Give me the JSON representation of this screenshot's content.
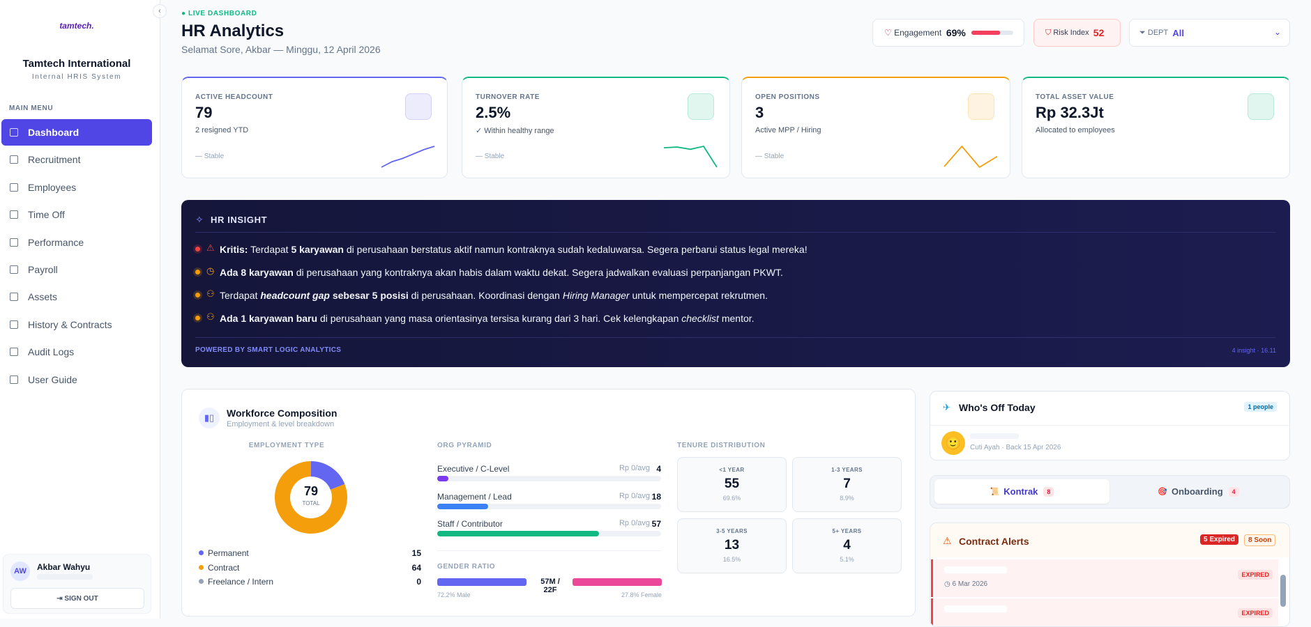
{
  "sidebar": {
    "logo": "tamtech.",
    "company": "Tamtech International",
    "system": "Internal HRIS System",
    "menu_label": "MAIN MENU",
    "active": 0,
    "menu": [
      "Dashboard",
      "Recruitment",
      "Employees",
      "Time Off",
      "Performance",
      "Payroll",
      "Assets",
      "History & Contracts",
      "Audit Logs",
      "User Guide"
    ],
    "user": {
      "initials": "AW",
      "name": "Akbar Wahyu",
      "signout": "SIGN OUT"
    }
  },
  "header": {
    "live": "LIVE DASHBOARD",
    "title": "HR Analytics",
    "greeting": "Selamat Sore, Akbar — Minggu, 12 April 2026",
    "engagement": {
      "label": "Engagement",
      "value": 69,
      "value_label": "69%"
    },
    "risk": {
      "label": "Risk Index",
      "value": "52"
    },
    "dept": {
      "label": "DEPT",
      "value": "All"
    }
  },
  "kpis": [
    {
      "label": "ACTIVE HEADCOUNT",
      "value": "79",
      "sub": "2 resigned YTD",
      "trend": "— Stable",
      "color": "#6366f1",
      "sparkline": [
        1,
        2,
        2.6,
        3.4,
        4.2,
        4.8
      ]
    },
    {
      "label": "TURNOVER RATE",
      "value": "2.5%",
      "sub": "✓ Within healthy range",
      "trend": "— Stable",
      "color": "#10b981",
      "sparkline": [
        4.6,
        4.7,
        4.4,
        4.8,
        2.0
      ]
    },
    {
      "label": "OPEN POSITIONS",
      "value": "3",
      "sub": "Active MPP / Hiring",
      "trend": "— Stable",
      "color": "#f59e0b",
      "sparkline": [
        1,
        4,
        0.9,
        2.5
      ]
    },
    {
      "label": "TOTAL ASSET VALUE",
      "value": "Rp 32.3Jt",
      "sub": "Allocated to employees",
      "color": "#10b981"
    }
  ],
  "insight": {
    "title": "HR INSIGHT",
    "items": [
      {
        "level": "critical",
        "icon": "alert",
        "parts": [
          {
            "t": "Kritis:",
            "s": "b"
          },
          {
            "t": " Terdapat "
          },
          {
            "t": "5 karyawan",
            "s": "b"
          },
          {
            "t": " di perusahaan berstatus aktif namun kontraknya sudah kedaluwarsa. Segera perbarui status legal mereka!"
          }
        ]
      },
      {
        "level": "warning",
        "icon": "clock",
        "parts": [
          {
            "t": "Ada 8 karyawan",
            "s": "b"
          },
          {
            "t": " di perusahaan yang kontraknya akan habis dalam waktu dekat. Segera jadwalkan evaluasi perpanjangan PKWT."
          }
        ]
      },
      {
        "level": "warning",
        "icon": "people",
        "parts": [
          {
            "t": "Terdapat "
          },
          {
            "t": "headcount gap",
            "s": "bi"
          },
          {
            "t": " sebesar 5 posisi",
            "s": "b"
          },
          {
            "t": " di perusahaan. Koordinasi dengan "
          },
          {
            "t": "Hiring Manager",
            "s": "i"
          },
          {
            "t": " untuk mempercepat rekrutmen."
          }
        ]
      },
      {
        "level": "warning",
        "icon": "people",
        "parts": [
          {
            "t": "Ada 1 karyawan baru",
            "s": "b"
          },
          {
            "t": " di perusahaan yang masa orientasinya tersisa kurang dari 3 hari. Cek kelengkapan "
          },
          {
            "t": "checklist",
            "s": "i"
          },
          {
            "t": " mentor."
          }
        ]
      }
    ],
    "footer": "POWERED BY SMART LOGIC ANALYTICS",
    "meta": "4 insight · 16.11"
  },
  "workforce": {
    "title": "Workforce Composition",
    "subtitle": "Employment & level breakdown",
    "employment": {
      "title": "EMPLOYMENT TYPE",
      "total": "79",
      "total_label": "TOTAL",
      "types": [
        {
          "name": "Permanent",
          "value": 15,
          "color": "#6366f1"
        },
        {
          "name": "Contract",
          "value": 64,
          "color": "#f59e0b"
        },
        {
          "name": "Freelance / Intern",
          "value": 0,
          "color": "#94a3b8"
        }
      ]
    },
    "pyramid": {
      "title": "ORG PYRAMID",
      "levels": [
        {
          "name": "Executive / C-Level",
          "avg": "Rp 0/avg",
          "value": 4,
          "color": "#7c3aed"
        },
        {
          "name": "Management / Lead",
          "avg": "Rp 0/avg",
          "value": 18,
          "color": "#3b82f6"
        },
        {
          "name": "Staff / Contributor",
          "avg": "Rp 0/avg",
          "value": 57,
          "color": "#10b981"
        }
      ]
    },
    "gender": {
      "title": "GENDER RATIO",
      "ratio": "57M / 22F",
      "male": "72.2% Male",
      "female": "27.8% Female"
    },
    "tenure": {
      "title": "TENURE DISTRIBUTION",
      "groups": [
        {
          "label": "<1 YEAR",
          "value": "55",
          "pct": "69.6%"
        },
        {
          "label": "1-3 YEARS",
          "value": "7",
          "pct": "8.9%"
        },
        {
          "label": "3-5 YEARS",
          "value": "13",
          "pct": "16.5%"
        },
        {
          "label": "5+ YEARS",
          "value": "4",
          "pct": "5.1%"
        }
      ]
    }
  },
  "off_today": {
    "title": "Who's Off Today",
    "badge": "1 people",
    "entries": [
      "Cuti Ayah · Back 15 Apr 2026"
    ]
  },
  "tabs": [
    {
      "label": "Kontrak",
      "count": "8"
    },
    {
      "label": "Onboarding",
      "count": "4"
    }
  ],
  "alerts": {
    "title": "Contract Alerts",
    "expired": "5 Expired",
    "soon": "8 Soon",
    "rows": [
      {
        "date": "6 Mar 2026",
        "status": "EXPIRED"
      },
      {
        "status": "EXPIRED"
      }
    ]
  }
}
